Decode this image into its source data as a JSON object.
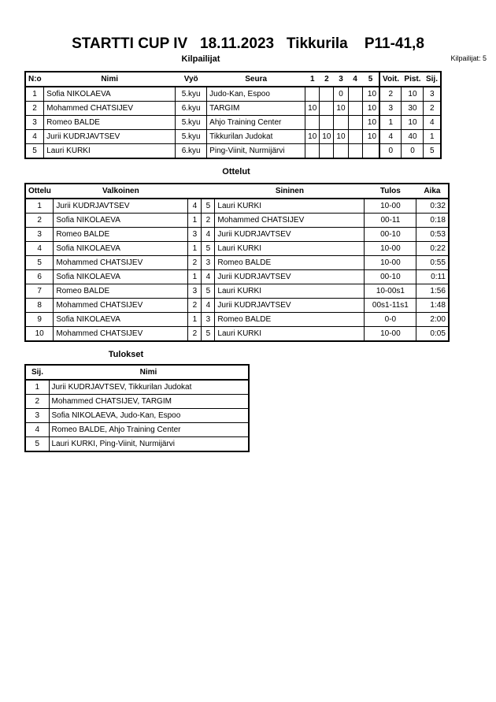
{
  "title": "STARTTI CUP IV   18.11.2023   Tikkurila    P11-41,8",
  "competitors_section": {
    "heading": "Kilpailijat",
    "count_label": "Kilpailijat: 5",
    "headers": [
      "N:o",
      "Nimi",
      "Vyö",
      "Seura",
      "1",
      "2",
      "3",
      "4",
      "5",
      "Voit.",
      "Pist.",
      "Sij."
    ],
    "rows": [
      [
        "1",
        "Sofia NIKOLAEVA",
        "5.kyu",
        "Judo-Kan, Espoo",
        "",
        "",
        "0",
        "",
        "10",
        "2",
        "10",
        "3"
      ],
      [
        "2",
        "Mohammed CHATSIJEV",
        "6.kyu",
        "TARGIM",
        "10",
        "",
        "10",
        "",
        "10",
        "3",
        "30",
        "2"
      ],
      [
        "3",
        "Romeo BALDE",
        "5.kyu",
        "Ahjo Training Center",
        "",
        "",
        "",
        "",
        "10",
        "1",
        "10",
        "4"
      ],
      [
        "4",
        "Jurii KUDRJAVTSEV",
        "5.kyu",
        "Tikkurilan Judokat",
        "10",
        "10",
        "10",
        "",
        "10",
        "4",
        "40",
        "1"
      ],
      [
        "5",
        "Lauri KURKI",
        "6.kyu",
        "Ping-Viinit, Nurmijärvi",
        "",
        "",
        "",
        "",
        "",
        "0",
        "0",
        "5"
      ]
    ]
  },
  "matches_section": {
    "heading": "Ottelut",
    "headers": [
      "Ottelu",
      "Valkoinen",
      "",
      "",
      "Sininen",
      "Tulos",
      "Aika"
    ],
    "rows": [
      [
        "1",
        "Jurii KUDRJAVTSEV",
        "4",
        "5",
        "Lauri KURKI",
        "10-00",
        "0:32"
      ],
      [
        "2",
        "Sofia NIKOLAEVA",
        "1",
        "2",
        "Mohammed CHATSIJEV",
        "00-11",
        "0:18"
      ],
      [
        "3",
        "Romeo BALDE",
        "3",
        "4",
        "Jurii KUDRJAVTSEV",
        "00-10",
        "0:53"
      ],
      [
        "4",
        "Sofia NIKOLAEVA",
        "1",
        "5",
        "Lauri KURKI",
        "10-00",
        "0:22"
      ],
      [
        "5",
        "Mohammed CHATSIJEV",
        "2",
        "3",
        "Romeo BALDE",
        "10-00",
        "0:55"
      ],
      [
        "6",
        "Sofia NIKOLAEVA",
        "1",
        "4",
        "Jurii KUDRJAVTSEV",
        "00-10",
        "0:11"
      ],
      [
        "7",
        "Romeo BALDE",
        "3",
        "5",
        "Lauri KURKI",
        "10-00s1",
        "1:56"
      ],
      [
        "8",
        "Mohammed CHATSIJEV",
        "2",
        "4",
        "Jurii KUDRJAVTSEV",
        "00s1-11s1",
        "1:48"
      ],
      [
        "9",
        "Sofia NIKOLAEVA",
        "1",
        "3",
        "Romeo BALDE",
        "0-0",
        "2:00"
      ],
      [
        "10",
        "Mohammed CHATSIJEV",
        "2",
        "5",
        "Lauri KURKI",
        "10-00",
        "0:05"
      ]
    ]
  },
  "results_section": {
    "heading": "Tulokset",
    "headers": [
      "Sij.",
      "Nimi"
    ],
    "rows": [
      [
        "1",
        "Jurii KUDRJAVTSEV, Tikkurilan Judokat"
      ],
      [
        "2",
        "Mohammed CHATSIJEV, TARGIM"
      ],
      [
        "3",
        "Sofia NIKOLAEVA, Judo-Kan, Espoo"
      ],
      [
        "4",
        "Romeo BALDE, Ahjo Training Center"
      ],
      [
        "5",
        "Lauri KURKI, Ping-Viinit, Nurmijärvi"
      ]
    ]
  }
}
